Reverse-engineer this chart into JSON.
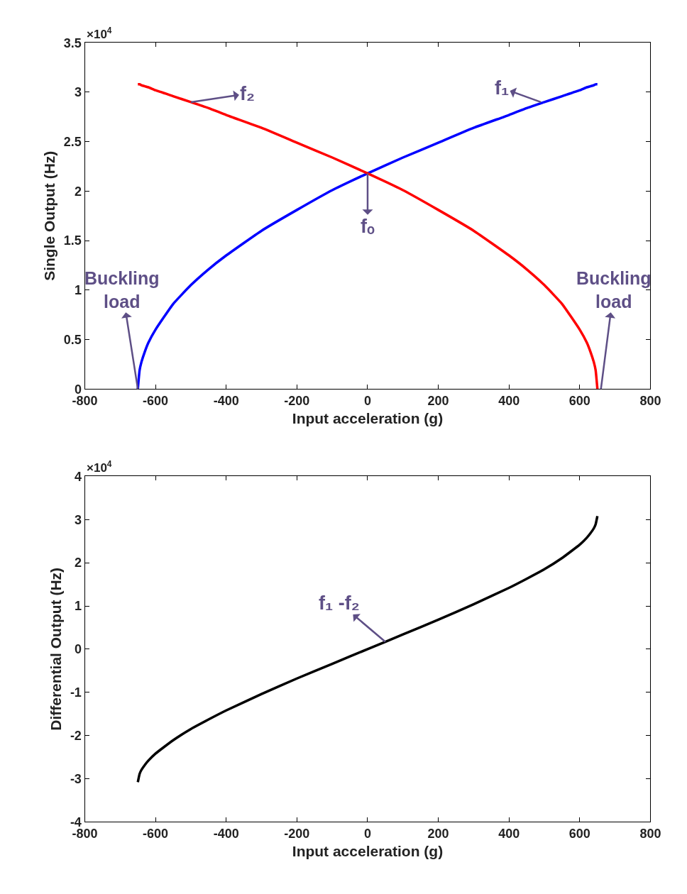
{
  "chart_data": [
    {
      "type": "line",
      "xlabel": "Input acceleration (g)",
      "ylabel": "Single Output (Hz)",
      "x": [
        -650,
        -645,
        -640,
        -630,
        -620,
        -600,
        -550,
        -500,
        -450,
        -400,
        -300,
        -200,
        -100,
        0,
        100,
        200,
        300,
        400,
        450,
        500,
        550,
        600,
        620,
        630,
        640,
        645,
        650
      ],
      "series": [
        {
          "color": "#0000ff",
          "values": [
            0,
            0.19,
            0.27,
            0.38,
            0.47,
            0.6,
            0.86,
            1.05,
            1.21,
            1.35,
            1.6,
            1.81,
            2.01,
            2.18,
            2.34,
            2.49,
            2.64,
            2.77,
            2.84,
            2.9,
            2.96,
            3.02,
            3.05,
            3.06,
            3.07,
            3.08,
            3.08
          ]
        },
        {
          "color": "#ff0000",
          "values": [
            3.08,
            3.08,
            3.07,
            3.06,
            3.05,
            3.02,
            2.96,
            2.9,
            2.84,
            2.77,
            2.64,
            2.49,
            2.34,
            2.18,
            2.01,
            1.81,
            1.6,
            1.35,
            1.21,
            1.05,
            0.86,
            0.6,
            0.47,
            0.38,
            0.27,
            0.19,
            0
          ]
        }
      ],
      "xlim": [
        -800,
        800
      ],
      "xticks": [
        -800,
        -600,
        -400,
        -200,
        0,
        200,
        400,
        600,
        800
      ],
      "ylim": [
        0,
        3.5
      ],
      "yticks": [
        0,
        0.5,
        1,
        1.5,
        2,
        2.5,
        3,
        3.5
      ],
      "annotations": [
        "×10$^{4}$",
        {
          "text": "f₂",
          "x": -500,
          "y": 2.9
        },
        {
          "text": "f₁",
          "x": 490,
          "y": 2.9
        },
        {
          "text": "fₒ",
          "x": 0,
          "y": 2.18
        },
        {
          "text": "Buckling load",
          "x": -650,
          "y": 0
        },
        {
          "text": "Buckling load",
          "x": 660,
          "y": 0
        }
      ],
      "line_style": "solid",
      "marker": "none"
    },
    {
      "type": "line",
      "xlabel": "Input acceleration (g)",
      "ylabel": "Differential Output (Hz)",
      "x": [
        -650,
        -645,
        -640,
        -630,
        -620,
        -600,
        -550,
        -500,
        -450,
        -400,
        -300,
        -200,
        -100,
        0,
        100,
        200,
        300,
        400,
        450,
        500,
        550,
        600,
        620,
        630,
        640,
        645,
        650
      ],
      "series": [
        {
          "color": "#000000",
          "values": [
            -3.08,
            -2.89,
            -2.8,
            -2.68,
            -2.58,
            -2.42,
            -2.11,
            -1.85,
            -1.63,
            -1.42,
            -1.04,
            -0.68,
            -0.34,
            0,
            0.34,
            0.68,
            1.04,
            1.42,
            1.63,
            1.85,
            2.11,
            2.42,
            2.58,
            2.68,
            2.8,
            2.89,
            3.08
          ]
        }
      ],
      "xlim": [
        -800,
        800
      ],
      "xticks": [
        -800,
        -600,
        -400,
        -200,
        0,
        200,
        400,
        600,
        800
      ],
      "ylim": [
        -4,
        4
      ],
      "yticks": [
        -4,
        -3,
        -2,
        -1,
        0,
        1,
        2,
        3,
        4
      ],
      "annotations": [
        "×10$^{4}$",
        {
          "text": "f₁ -f₂",
          "x": 50,
          "y": 0.17
        }
      ],
      "line_style": "solid",
      "marker": "none"
    }
  ]
}
